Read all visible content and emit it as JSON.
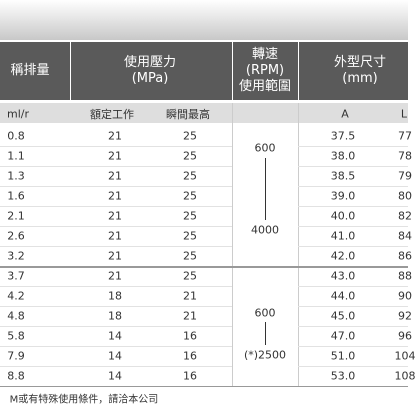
{
  "header": {
    "displacement": "稱排量",
    "pressure": [
      "使用壓力",
      "(MPa)"
    ],
    "speed": [
      "轉速",
      "(RPM)",
      "使用範圍"
    ],
    "size": [
      "外型尺寸",
      "(mm)"
    ]
  },
  "subheader": {
    "unit": "ml/r",
    "rated": "額定工作",
    "peak": "瞬間最高",
    "a": "A",
    "l": "L"
  },
  "rows": [
    [
      "0.8",
      "21",
      "25",
      "37.5",
      "77"
    ],
    [
      "1.1",
      "21",
      "25",
      "38.0",
      "78"
    ],
    [
      "1.3",
      "21",
      "25",
      "38.5",
      "79"
    ],
    [
      "1.6",
      "21",
      "25",
      "39.0",
      "80"
    ],
    [
      "2.1",
      "21",
      "25",
      "40.0",
      "82"
    ],
    [
      "2.6",
      "21",
      "25",
      "41.0",
      "84"
    ],
    [
      "3.2",
      "21",
      "25",
      "42.0",
      "86"
    ],
    [
      "3.7",
      "21",
      "25",
      "43.0",
      "88"
    ],
    [
      "4.2",
      "18",
      "21",
      "44.0",
      "90"
    ],
    [
      "4.8",
      "18",
      "21",
      "45.0",
      "92"
    ],
    [
      "5.8",
      "14",
      "16",
      "47.0",
      "96"
    ],
    [
      "7.9",
      "14",
      "16",
      "51.0",
      "104"
    ],
    [
      "8.8",
      "14",
      "16",
      "53.0",
      "108"
    ]
  ],
  "speed_groups": [
    {
      "min": "600",
      "max": "4000"
    },
    {
      "min": "600",
      "max": "(*)2500"
    }
  ],
  "footer": "M或有特殊使用條件，請洽本公司"
}
